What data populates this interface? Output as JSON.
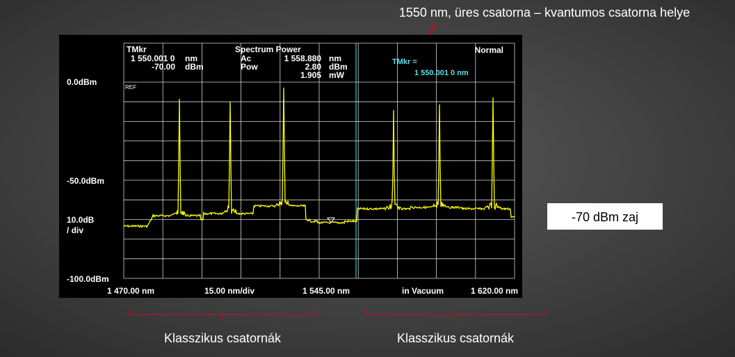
{
  "annotation": "1550 nm, üres csatorna – kvantumos csatorna  helye",
  "noise_label": "-70 dBm zaj",
  "channel_labels": [
    "Klasszikus csatornák",
    "Klasszikus csatornák"
  ],
  "instrument": {
    "header": {
      "tmkr": "TMkr",
      "tmkr_wl": "1 550.001 0",
      "tmkr_wl_unit": "nm",
      "tmkr_level": "-70.00",
      "tmkr_level_unit": "dBm",
      "mode_title": "Spectrum Power",
      "ac": "Ac",
      "ac_value": "1 558.880",
      "ac_unit": "nm",
      "pow": "Pow",
      "pow_value": "2.80",
      "pow_unit": "dBm",
      "pow_mw": "1.905",
      "pow_mw_unit": "mW",
      "normal": "Normal",
      "tmkr_box": "TMkr =",
      "tmkr_box_value": "1 550.001 0 nm"
    },
    "ref": "REF",
    "y_labels": [
      "0.0dBm",
      "-50.0dBm",
      "10.0dB",
      "/ div",
      "-100.0dBm"
    ],
    "x_labels": [
      "1 470.00 nm",
      "15.00 nm/div",
      "1 545.00 nm",
      "in Vacuum",
      "1 620.00 nm"
    ]
  }
}
